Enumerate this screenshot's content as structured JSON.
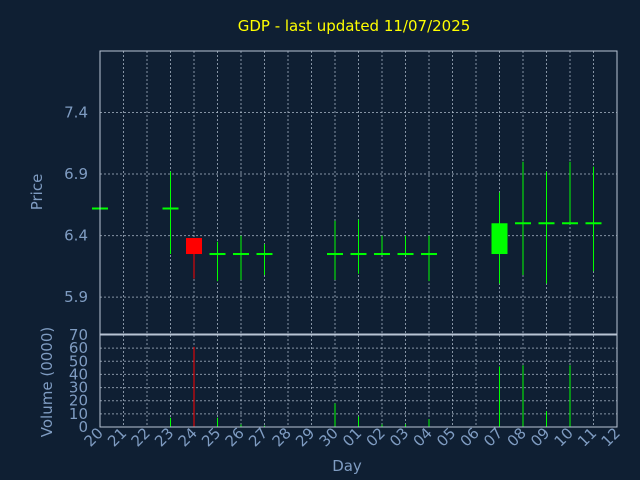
{
  "chart_data": {
    "type": "candlestick",
    "title": "GDP - last updated 11/07/2025",
    "xlabel": "Day",
    "ylabel": "Price",
    "volume_label": "Volume (0000)",
    "x_ticks": [
      "20",
      "21",
      "22",
      "23",
      "24",
      "25",
      "26",
      "27",
      "28",
      "29",
      "30",
      "01",
      "02",
      "03",
      "04",
      "05",
      "06",
      "07",
      "08",
      "09",
      "10",
      "11",
      "12"
    ],
    "y_ticks": [
      "7.4",
      "6.9",
      "6.4",
      "5.9"
    ],
    "ylim": [
      5.6,
      7.9
    ],
    "volume_ticks": [
      "70",
      "60",
      "50",
      "40",
      "30",
      "20",
      "10",
      "0"
    ],
    "volume_ylim": [
      0,
      70
    ],
    "grid": true,
    "colors": {
      "background": "#0f1f33",
      "grid": "#b8c4d4",
      "title": "#ffff00",
      "axis_text": "#7f9cc2",
      "up": "#00ff00",
      "down": "#ff0000",
      "neutral": "#00ff00"
    },
    "candles": [
      {
        "day": "20",
        "open": 6.62,
        "high": 6.62,
        "low": 6.62,
        "close": 6.62,
        "volume": 0
      },
      {
        "day": "23",
        "open": 6.62,
        "high": 6.92,
        "low": 6.25,
        "close": 6.62,
        "volume": 7
      },
      {
        "day": "24",
        "open": 6.38,
        "high": 6.38,
        "low": 6.05,
        "close": 6.25,
        "volume": 61
      },
      {
        "day": "25",
        "open": 6.25,
        "high": 6.35,
        "low": 6.03,
        "close": 6.25,
        "volume": 7
      },
      {
        "day": "26",
        "open": 6.25,
        "high": 6.4,
        "low": 6.04,
        "close": 6.25,
        "volume": 2
      },
      {
        "day": "27",
        "open": 6.25,
        "high": 6.33,
        "low": 6.08,
        "close": 6.25,
        "volume": 1
      },
      {
        "day": "30",
        "open": 6.25,
        "high": 6.52,
        "low": 6.04,
        "close": 6.25,
        "volume": 18
      },
      {
        "day": "01",
        "open": 6.25,
        "high": 6.53,
        "low": 6.09,
        "close": 6.25,
        "volume": 8
      },
      {
        "day": "02",
        "open": 6.25,
        "high": 6.4,
        "low": 6.25,
        "close": 6.25,
        "volume": 2
      },
      {
        "day": "03",
        "open": 6.25,
        "high": 6.4,
        "low": 6.25,
        "close": 6.25,
        "volume": 2
      },
      {
        "day": "04",
        "open": 6.25,
        "high": 6.4,
        "low": 6.03,
        "close": 6.25,
        "volume": 6
      },
      {
        "day": "07",
        "open": 6.25,
        "high": 6.75,
        "low": 6.01,
        "close": 6.5,
        "volume": 46
      },
      {
        "day": "08",
        "open": 6.5,
        "high": 7.0,
        "low": 6.08,
        "close": 6.5,
        "volume": 47
      },
      {
        "day": "09",
        "open": 6.5,
        "high": 6.92,
        "low": 6.01,
        "close": 6.5,
        "volume": 12
      },
      {
        "day": "10",
        "open": 6.5,
        "high": 7.0,
        "low": 6.5,
        "close": 6.5,
        "volume": 47
      },
      {
        "day": "11",
        "open": 6.5,
        "high": 6.96,
        "low": 6.11,
        "close": 6.5,
        "volume": 0
      }
    ]
  }
}
